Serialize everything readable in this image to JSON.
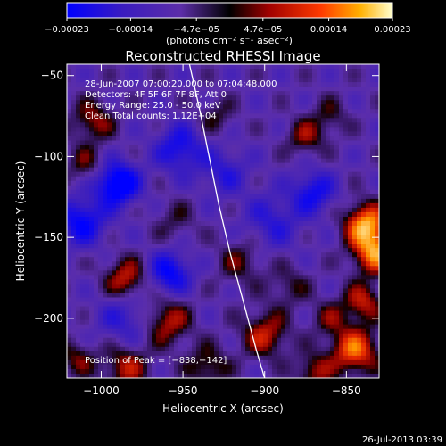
{
  "chart_data": {
    "type": "heatmap",
    "title": "Reconstructed RHESSI Image",
    "xlabel": "Heliocentric X (arcsec)",
    "ylabel": "Heliocentric Y (arcsec)",
    "xlim": [
      -1021,
      -830
    ],
    "ylim": [
      -237,
      -43
    ],
    "x_ticks": [
      -1000,
      -950,
      -900,
      -850
    ],
    "x_tick_labels": [
      "−1000",
      "−950",
      "−900",
      "−850"
    ],
    "y_ticks": [
      -50,
      -100,
      -150,
      -200
    ],
    "y_tick_labels": [
      "−50",
      "−100",
      "−150",
      "−200"
    ],
    "colorbar": {
      "range": [
        -0.00023,
        0.00023
      ],
      "ticks": [
        -0.00023,
        -0.00014,
        -4.7e-05,
        4.7e-05,
        0.00014,
        0.00023
      ],
      "tick_labels": [
        "−0.00023",
        "−0.00014",
        "−4.7e−05",
        "4.7e−05",
        "0.00014",
        "0.00023"
      ],
      "unit_label": "(photons cm⁻² s⁻¹ asec⁻²)"
    },
    "annotations": {
      "time_range": "28-Jun-2007 07:00:20.000 to 07:04:48.000",
      "detectors": "Detectors: 4F 5F 6F 7F 8F, Att 0",
      "energy": "Energy Range: 25.0 - 50.0 keV",
      "clean": "Clean    Total counts: 1.12E+04",
      "peak": "Position of Peak = [−838,−142]"
    },
    "peak": [
      -838,
      -142
    ],
    "limb_curve": [
      [
        -946,
        -43
      ],
      [
        -940,
        -70
      ],
      [
        -934,
        -100
      ],
      [
        -928,
        -130
      ],
      [
        -921,
        -160
      ],
      [
        -913,
        -190
      ],
      [
        -905,
        -220
      ],
      [
        -900,
        -237
      ]
    ],
    "colors": {
      "background": "#000000",
      "limb": "#ffffff"
    }
  },
  "footer": {
    "timestamp": "26-Jul-2013 03:39"
  }
}
